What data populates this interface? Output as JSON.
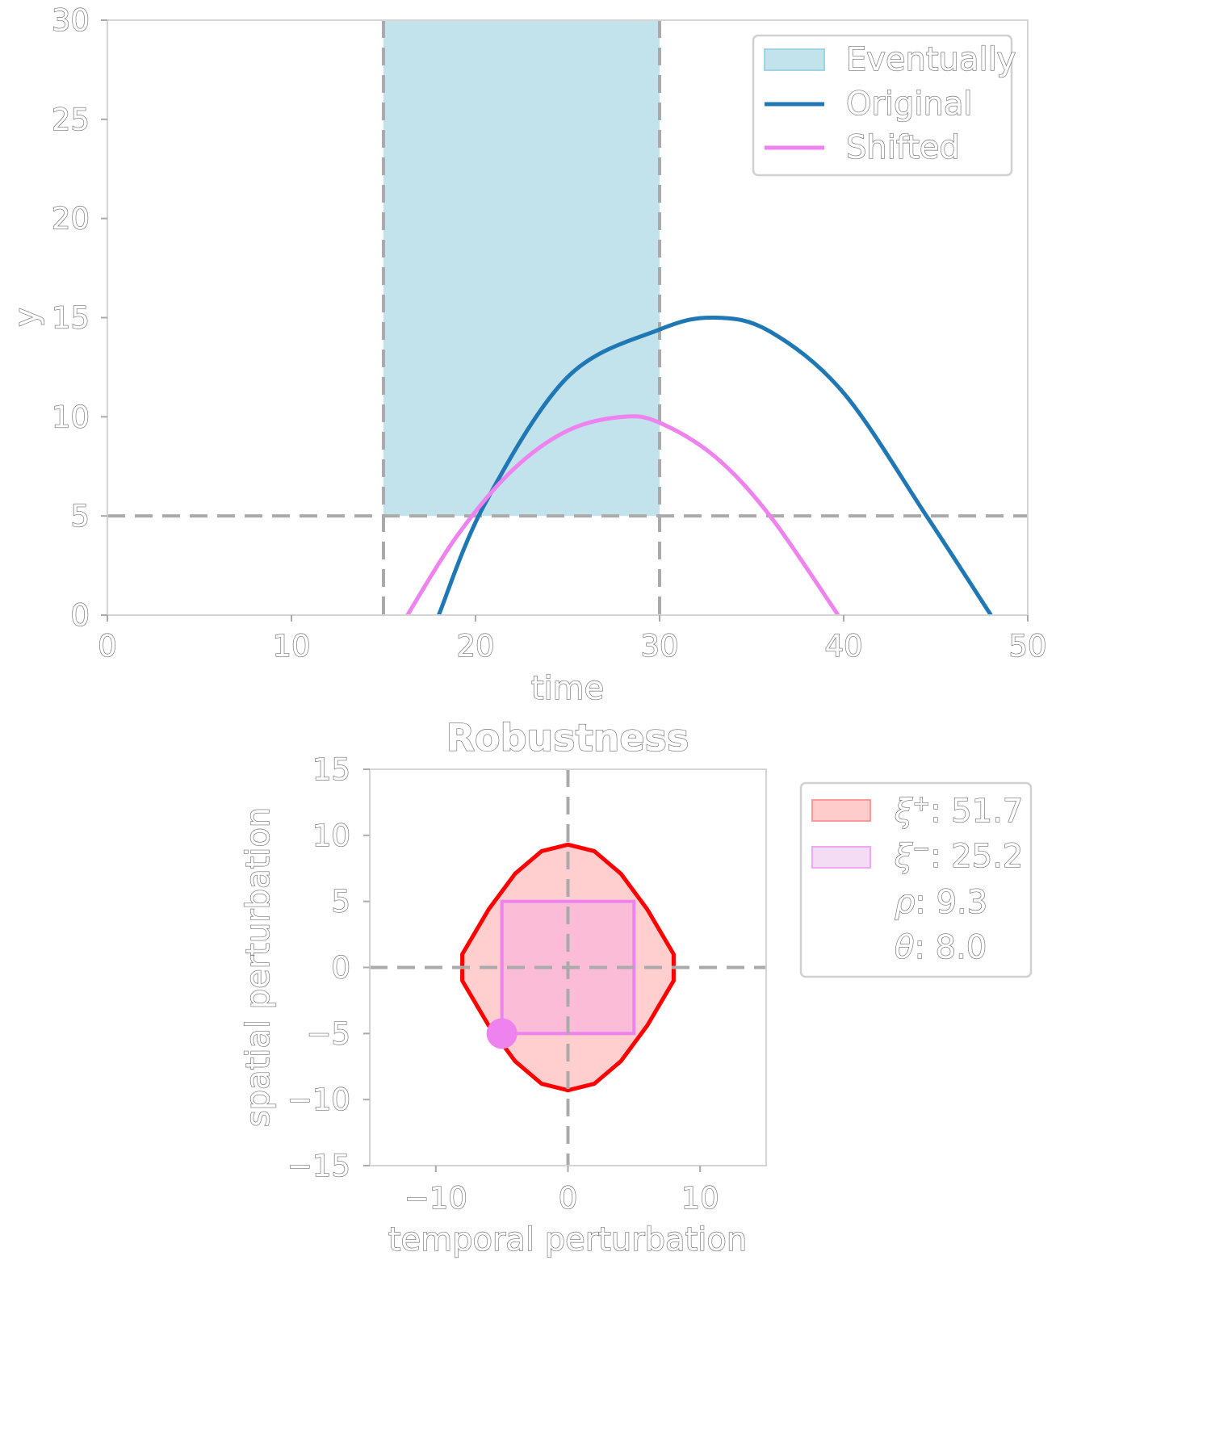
{
  "chart_data": [
    {
      "type": "line",
      "xlabel": "time",
      "ylabel": "y",
      "xlim": [
        0,
        50
      ],
      "ylim": [
        0,
        30
      ],
      "xticks": [
        "0",
        "10",
        "20",
        "30",
        "40",
        "50"
      ],
      "yticks": [
        "0",
        "5",
        "10",
        "15",
        "20",
        "25",
        "30"
      ],
      "grid": false,
      "legend_position": "top-right",
      "shaded_region": {
        "name": "Eventually",
        "x_range": [
          15,
          30
        ],
        "y_range": [
          5,
          30
        ],
        "color": "#add8e6"
      },
      "reference_lines": {
        "x": [
          15,
          30
        ],
        "y": [
          5
        ],
        "style": "dashed",
        "color": "#aaaaaa"
      },
      "series": [
        {
          "name": "Original",
          "color": "#1f77b4",
          "points": [
            [
              18,
              0
            ],
            [
              20.5,
              5.6
            ],
            [
              25,
              12
            ],
            [
              30,
              14.4
            ],
            [
              33,
              15
            ],
            [
              36,
              14.3
            ],
            [
              40,
              11.2
            ],
            [
              44.5,
              5.0
            ],
            [
              48,
              0
            ]
          ]
        },
        {
          "name": "Shifted",
          "color": "#ee82ee",
          "points": [
            [
              16.3,
              0
            ],
            [
              19,
              4.0
            ],
            [
              22,
              7.3
            ],
            [
              25,
              9.3
            ],
            [
              28,
              10
            ],
            [
              30,
              9.7
            ],
            [
              33,
              8.0
            ],
            [
              36,
              5.0
            ],
            [
              39.7,
              0
            ]
          ]
        }
      ],
      "legend": [
        "Eventually",
        "Original",
        "Shifted"
      ]
    },
    {
      "type": "area",
      "title": "Robustness",
      "xlabel": "temporal perturbation",
      "ylabel": "spatial perturbation",
      "xlim": [
        -15,
        15
      ],
      "ylim": [
        -15,
        15
      ],
      "xticks": [
        "−10",
        "0",
        "10"
      ],
      "yticks": [
        "−15",
        "−10",
        "−5",
        "0",
        "5",
        "10",
        "15"
      ],
      "reference_lines": {
        "x": [
          0
        ],
        "y": [
          0
        ],
        "style": "dashed",
        "color": "#aaaaaa"
      },
      "xi_plus_region": {
        "color": "#ff0000",
        "fill": "#ffcccc",
        "points": [
          [
            0,
            9.3
          ],
          [
            2,
            8.8
          ],
          [
            4,
            7.1
          ],
          [
            6,
            4.4
          ],
          [
            8,
            1.0
          ],
          [
            8,
            -1.0
          ],
          [
            6,
            -4.4
          ],
          [
            4,
            -7.1
          ],
          [
            2,
            -8.8
          ],
          [
            0,
            -9.3
          ],
          [
            -2,
            -8.8
          ],
          [
            -4,
            -7.1
          ],
          [
            -6,
            -4.4
          ],
          [
            -8,
            -1.0
          ],
          [
            -8,
            1.0
          ],
          [
            -6,
            4.4
          ],
          [
            -4,
            7.1
          ],
          [
            -2,
            8.8
          ]
        ]
      },
      "xi_minus_region": {
        "color": "#ee82ee",
        "x_range": [
          -5,
          5
        ],
        "y_range": [
          -5,
          5
        ]
      },
      "marker_point": {
        "x": -5,
        "y": -5,
        "color": "#ee82ee"
      },
      "legend_position": "right",
      "legend": {
        "xi_plus": {
          "symbol": "ξ",
          "sup": "+",
          "value": ": 51.7"
        },
        "xi_minus": {
          "symbol": "ξ",
          "sup": "−",
          "value": ": 25.2"
        },
        "rho": {
          "symbol": "ρ",
          "value": ": 9.3"
        },
        "theta": {
          "symbol": "θ",
          "value": ": 8.0"
        }
      }
    }
  ]
}
